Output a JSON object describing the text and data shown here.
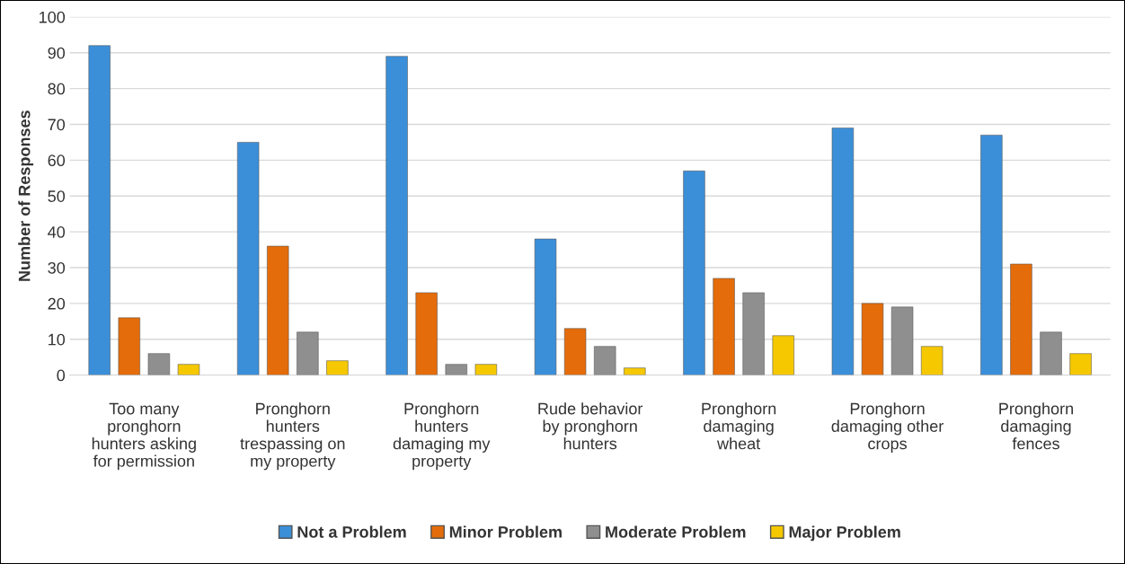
{
  "chart_data": {
    "type": "bar",
    "ylabel": "Number of Responses",
    "categories": [
      "Too many\npronghorn\nhunters asking\nfor permission",
      "Pronghorn\nhunters\ntrespassing on\nmy property",
      "Pronghorn\nhunters\ndamaging my\nproperty",
      "Rude behavior\nby pronghorn\nhunters",
      "Pronghorn\ndamaging\nwheat",
      "Pronghorn\ndamaging other\ncrops",
      "Pronghorn\ndamaging\nfences"
    ],
    "series": [
      {
        "name": "Not a Problem",
        "color": "#3b8fd9",
        "values": [
          92,
          65,
          89,
          38,
          57,
          69,
          67
        ]
      },
      {
        "name": "Minor Problem",
        "color": "#e46c0a",
        "values": [
          16,
          36,
          23,
          13,
          27,
          20,
          31
        ]
      },
      {
        "name": "Moderate Problem",
        "color": "#8f8f8f",
        "values": [
          6,
          12,
          3,
          8,
          23,
          19,
          12
        ]
      },
      {
        "name": "Major Problem",
        "color": "#f5c800",
        "values": [
          3,
          4,
          3,
          2,
          11,
          8,
          6
        ]
      }
    ],
    "ylim": [
      0,
      100
    ],
    "yticks": [
      0,
      10,
      20,
      30,
      40,
      50,
      60,
      70,
      80,
      90,
      100
    ],
    "grid": "y",
    "legend": "bottom"
  }
}
